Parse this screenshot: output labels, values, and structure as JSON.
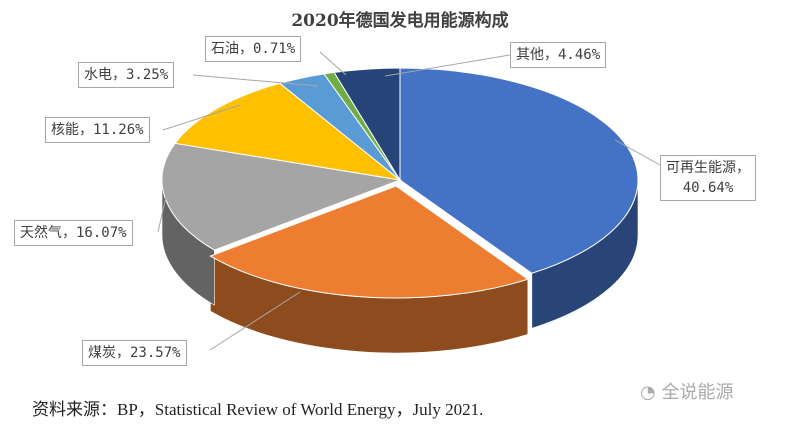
{
  "chart_data": {
    "type": "pie",
    "style": "3d-exploded",
    "title": "2020年德国发电用能源构成",
    "slices": [
      {
        "name": "可再生能源",
        "value": 40.64,
        "label": "可再生能源，",
        "label2": "40.64%",
        "color": "#4472c4"
      },
      {
        "name": "煤炭",
        "value": 23.57,
        "label": "煤炭，23.57%",
        "color": "#ed7d31"
      },
      {
        "name": "天然气",
        "value": 16.07,
        "label": "天然气，16.07%",
        "color": "#a5a5a5"
      },
      {
        "name": "核能",
        "value": 11.26,
        "label": "核能，11.26%",
        "color": "#ffc000"
      },
      {
        "name": "水电",
        "value": 3.25,
        "label": "水电，3.25%",
        "color": "#5b9bd5"
      },
      {
        "name": "石油",
        "value": 0.71,
        "label": "石油，0.71%",
        "color": "#70ad47"
      },
      {
        "name": "其他",
        "value": 4.46,
        "label": "其他，4.46%",
        "color": "#264478"
      }
    ],
    "legend": "none"
  },
  "source": "资料来源：BP，Statistical Review of World Energy，July 2021.",
  "watermark": {
    "text": "全说能源",
    "icon": "wechat-icon"
  }
}
